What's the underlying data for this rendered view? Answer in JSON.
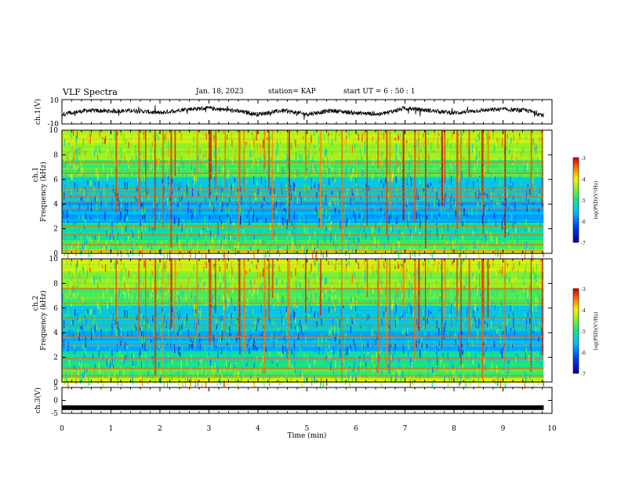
{
  "header": {
    "title": "VLF Spectra",
    "date": "Jan. 18, 2023",
    "station": "station= KAP",
    "start": "start  UT =  6 : 50 : 1"
  },
  "chart_data": [
    {
      "type": "line",
      "panel": "ch1-waveform",
      "ylabel": "ch.1(V)",
      "ylim": [
        -10,
        10
      ],
      "ytick_labels": [
        "10",
        "-10"
      ],
      "x_end": 9.83,
      "y_profile_x": [
        0,
        0.5,
        1,
        1.5,
        2,
        2.5,
        3,
        3.5,
        4,
        4.5,
        5,
        5.5,
        6,
        6.5,
        7,
        7.5,
        8,
        8.5,
        9,
        9.5,
        9.83
      ],
      "y_profile": [
        -2,
        1,
        0.5,
        1,
        -1,
        2,
        3,
        1,
        -2,
        1,
        -2,
        1,
        -1,
        -2,
        3,
        1,
        -1,
        1,
        2,
        1,
        -3
      ]
    },
    {
      "type": "heatmap",
      "panel": "ch1-spectrogram",
      "ylabel": "Frequency (kHz)",
      "side_label": "ch.1",
      "ylim": [
        0,
        10
      ],
      "yticks": [
        0,
        2,
        4,
        6,
        8,
        10
      ],
      "colorbar": {
        "label": "log(PSD)(V²/Hz)",
        "range": [
          -7,
          -3
        ],
        "ticks": [
          -3,
          -4,
          -5,
          -6,
          -7
        ]
      },
      "band_lines_khz": [
        0.2,
        0.7,
        1.5,
        2.2,
        3.7,
        4.2,
        4.6,
        5.0,
        5.3,
        6.5,
        7.4
      ]
    },
    {
      "type": "heatmap",
      "panel": "ch2-spectrogram",
      "ylabel": "Frequency (kHz)",
      "side_label": "ch.2",
      "ylim": [
        0,
        10
      ],
      "yticks": [
        0,
        2,
        4,
        6,
        8,
        10
      ],
      "colorbar": {
        "label": "log(PSD)(V²/Hz)",
        "range": [
          -7,
          -3
        ],
        "ticks": [
          -3,
          -4,
          -5,
          -6,
          -7
        ]
      },
      "band_lines_khz": [
        0.5,
        1.1,
        1.9,
        3.1,
        3.7,
        4.6,
        5.2,
        6.4,
        7.6
      ]
    },
    {
      "type": "line",
      "panel": "ch3-waveform",
      "ylabel": "ch.3(V)",
      "ylim": [
        -5,
        5
      ],
      "yticks": [
        -5,
        0,
        5
      ],
      "level": -2.8,
      "x_end": 9.83
    }
  ],
  "xaxis": {
    "label": "Time (min)",
    "range": [
      0,
      10
    ],
    "ticks": [
      "0",
      "1",
      "2",
      "3",
      "4",
      "5",
      "6",
      "7",
      "8",
      "9",
      "10"
    ]
  }
}
